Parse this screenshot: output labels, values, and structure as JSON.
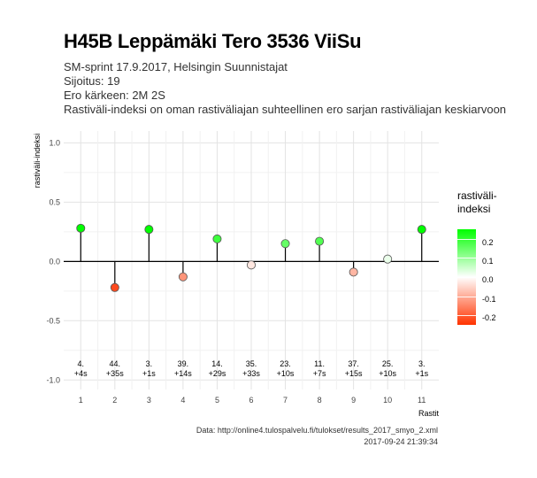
{
  "title": "H45B Leppämäki Tero 3536 ViiSu",
  "subtitle_lines": [
    "SM-sprint 17.9.2017, Helsingin Suunnistajat",
    "Sijoitus: 19",
    "Ero kärkeen: 2M 2S",
    "Rastiväli-indeksi on oman rastiväliajan suhteellinen ero sarjan rastiväliajan keskiarvoon"
  ],
  "caption_lines": [
    "Data: http://online4.tulospalvelu.fi/tulokset/results_2017_smyo_2.xml",
    "2017-09-24 21:39:34"
  ],
  "legend": {
    "title_lines": [
      "rastiväli-",
      "indeksi"
    ],
    "ticks": [
      "0.2",
      "0.1",
      "0.0",
      "-0.1",
      "-0.2"
    ],
    "colors": {
      "high": "#00ff00",
      "mid": "#ffffff",
      "low": "#ff3300"
    }
  },
  "chart_data": {
    "type": "scatter",
    "xlabel": "Rastit",
    "ylabel": "rastiväli-indeksi",
    "ylim": [
      -1.0,
      1.0
    ],
    "yticks": [
      "-1.0",
      "-0.5",
      "0.0",
      "0.5",
      "1.0"
    ],
    "xticks": [
      "1",
      "2",
      "3",
      "4",
      "5",
      "6",
      "7",
      "8",
      "9",
      "10",
      "11"
    ],
    "grid": true,
    "points": [
      {
        "x": 1,
        "y": 0.28,
        "rank": "4.",
        "diff": "+4s"
      },
      {
        "x": 2,
        "y": -0.22,
        "rank": "44.",
        "diff": "+35s"
      },
      {
        "x": 3,
        "y": 0.27,
        "rank": "3.",
        "diff": "+1s"
      },
      {
        "x": 4,
        "y": -0.13,
        "rank": "39.",
        "diff": "+14s"
      },
      {
        "x": 5,
        "y": 0.19,
        "rank": "14.",
        "diff": "+29s"
      },
      {
        "x": 6,
        "y": -0.03,
        "rank": "35.",
        "diff": "+33s"
      },
      {
        "x": 7,
        "y": 0.15,
        "rank": "23.",
        "diff": "+10s"
      },
      {
        "x": 8,
        "y": 0.17,
        "rank": "11.",
        "diff": "+7s"
      },
      {
        "x": 9,
        "y": -0.09,
        "rank": "37.",
        "diff": "+15s"
      },
      {
        "x": 10,
        "y": 0.02,
        "rank": "25.",
        "diff": "+10s"
      },
      {
        "x": 11,
        "y": 0.27,
        "rank": "3.",
        "diff": "+1s"
      }
    ]
  }
}
